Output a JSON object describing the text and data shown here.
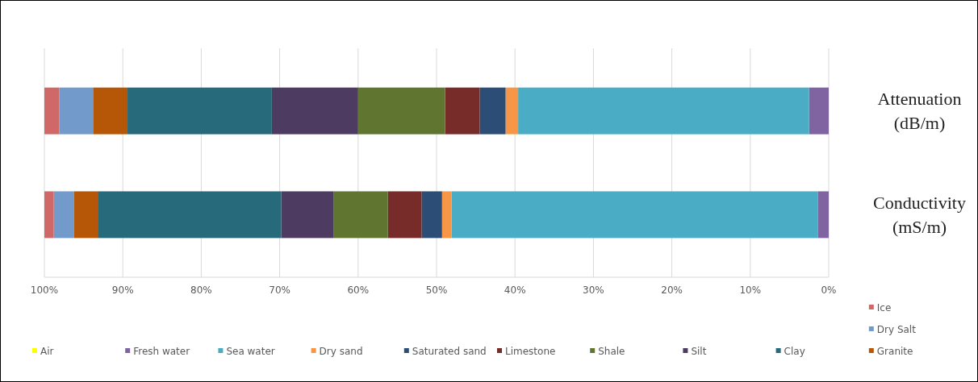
{
  "chart_data": {
    "type": "bar",
    "orientation": "horizontal",
    "stacked": true,
    "categories": [
      "Attenuation\n(dB/m)",
      "Conductivity\n(mS/m)"
    ],
    "xlim": [
      100,
      0
    ],
    "xticks": [
      {
        "value": 100,
        "label": "100%"
      },
      {
        "value": 90,
        "label": "90%"
      },
      {
        "value": 80,
        "label": "80%"
      },
      {
        "value": 70,
        "label": "70%"
      },
      {
        "value": 60,
        "label": "60%"
      },
      {
        "value": 50,
        "label": "50%"
      },
      {
        "value": 40,
        "label": "40%"
      },
      {
        "value": 30,
        "label": "30%"
      },
      {
        "value": 20,
        "label": "20%"
      },
      {
        "value": 10,
        "label": "10%"
      },
      {
        "value": 0,
        "label": "0%"
      }
    ],
    "grid": "x",
    "legend": "bottom",
    "series": [
      {
        "name": "Air",
        "color": "#ffff00",
        "values": [
          0,
          0
        ]
      },
      {
        "name": "Fresh water",
        "color": "#8064a2",
        "values": [
          2.5,
          1.4
        ]
      },
      {
        "name": "Sea water",
        "color": "#4bacc6",
        "values": [
          37.1,
          46.7
        ]
      },
      {
        "name": "Dry sand",
        "color": "#f79646",
        "values": [
          1.6,
          1.2
        ]
      },
      {
        "name": "Saturated sand",
        "color": "#2c4d75",
        "values": [
          3.3,
          2.6
        ]
      },
      {
        "name": "Limestone",
        "color": "#772c2a",
        "values": [
          4.4,
          4.3
        ]
      },
      {
        "name": "Shale",
        "color": "#5f7530",
        "values": [
          11.1,
          6.9
        ]
      },
      {
        "name": "Silt",
        "color": "#4d3b62",
        "values": [
          11.0,
          6.7
        ]
      },
      {
        "name": "Clay",
        "color": "#276a7c",
        "values": [
          18.4,
          23.4
        ]
      },
      {
        "name": "Granite",
        "color": "#b65708",
        "values": [
          4.4,
          3.0
        ]
      },
      {
        "name": "Dry Salt",
        "color": "#729aca",
        "values": [
          4.3,
          2.6
        ]
      },
      {
        "name": "Ice",
        "color": "#d06868",
        "values": [
          1.9,
          1.2
        ]
      }
    ]
  }
}
